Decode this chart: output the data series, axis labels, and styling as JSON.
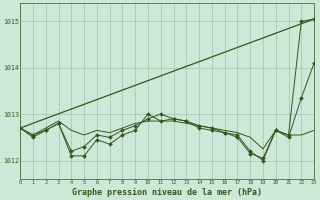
{
  "background_color": "#cce8d8",
  "grid_color": "#aac8b8",
  "line_color": "#2d5a1b",
  "xlabel": "Graphe pression niveau de la mer (hPa)",
  "xlabel_fontsize": 6,
  "ylabel_ticks": [
    1012,
    1013,
    1014,
    1015
  ],
  "xlim": [
    0,
    23
  ],
  "ylim": [
    1011.6,
    1015.4
  ],
  "hours": [
    0,
    1,
    2,
    3,
    4,
    5,
    6,
    7,
    8,
    9,
    10,
    11,
    12,
    13,
    14,
    15,
    16,
    17,
    18,
    19,
    20,
    21,
    22,
    23
  ],
  "series1": [
    1012.7,
    1012.55,
    1012.65,
    1012.8,
    1012.1,
    1012.1,
    1012.45,
    1012.35,
    1012.55,
    1012.65,
    1013.0,
    1012.85,
    1012.9,
    1012.85,
    1012.7,
    1012.65,
    1012.6,
    1012.55,
    1012.2,
    1012.0,
    1012.65,
    1012.55,
    1015.0,
    1015.05
  ],
  "series2": [
    1012.7,
    1012.5,
    1012.65,
    1012.8,
    1012.2,
    1012.3,
    1012.55,
    1012.5,
    1012.65,
    1012.75,
    1012.9,
    1013.0,
    1012.9,
    1012.85,
    1012.75,
    1012.7,
    1012.6,
    1012.5,
    1012.15,
    1012.05,
    1012.65,
    1012.5,
    1013.35,
    1014.1
  ],
  "series3": [
    1012.7,
    1012.55,
    1012.7,
    1012.85,
    1012.65,
    1012.55,
    1012.65,
    1012.6,
    1012.7,
    1012.8,
    1012.85,
    1012.85,
    1012.85,
    1012.8,
    1012.75,
    1012.7,
    1012.65,
    1012.6,
    1012.5,
    1012.25,
    1012.65,
    1012.55,
    1012.55,
    1012.65
  ],
  "trend_x": [
    0,
    23
  ],
  "trend_y": [
    1012.7,
    1015.05
  ]
}
